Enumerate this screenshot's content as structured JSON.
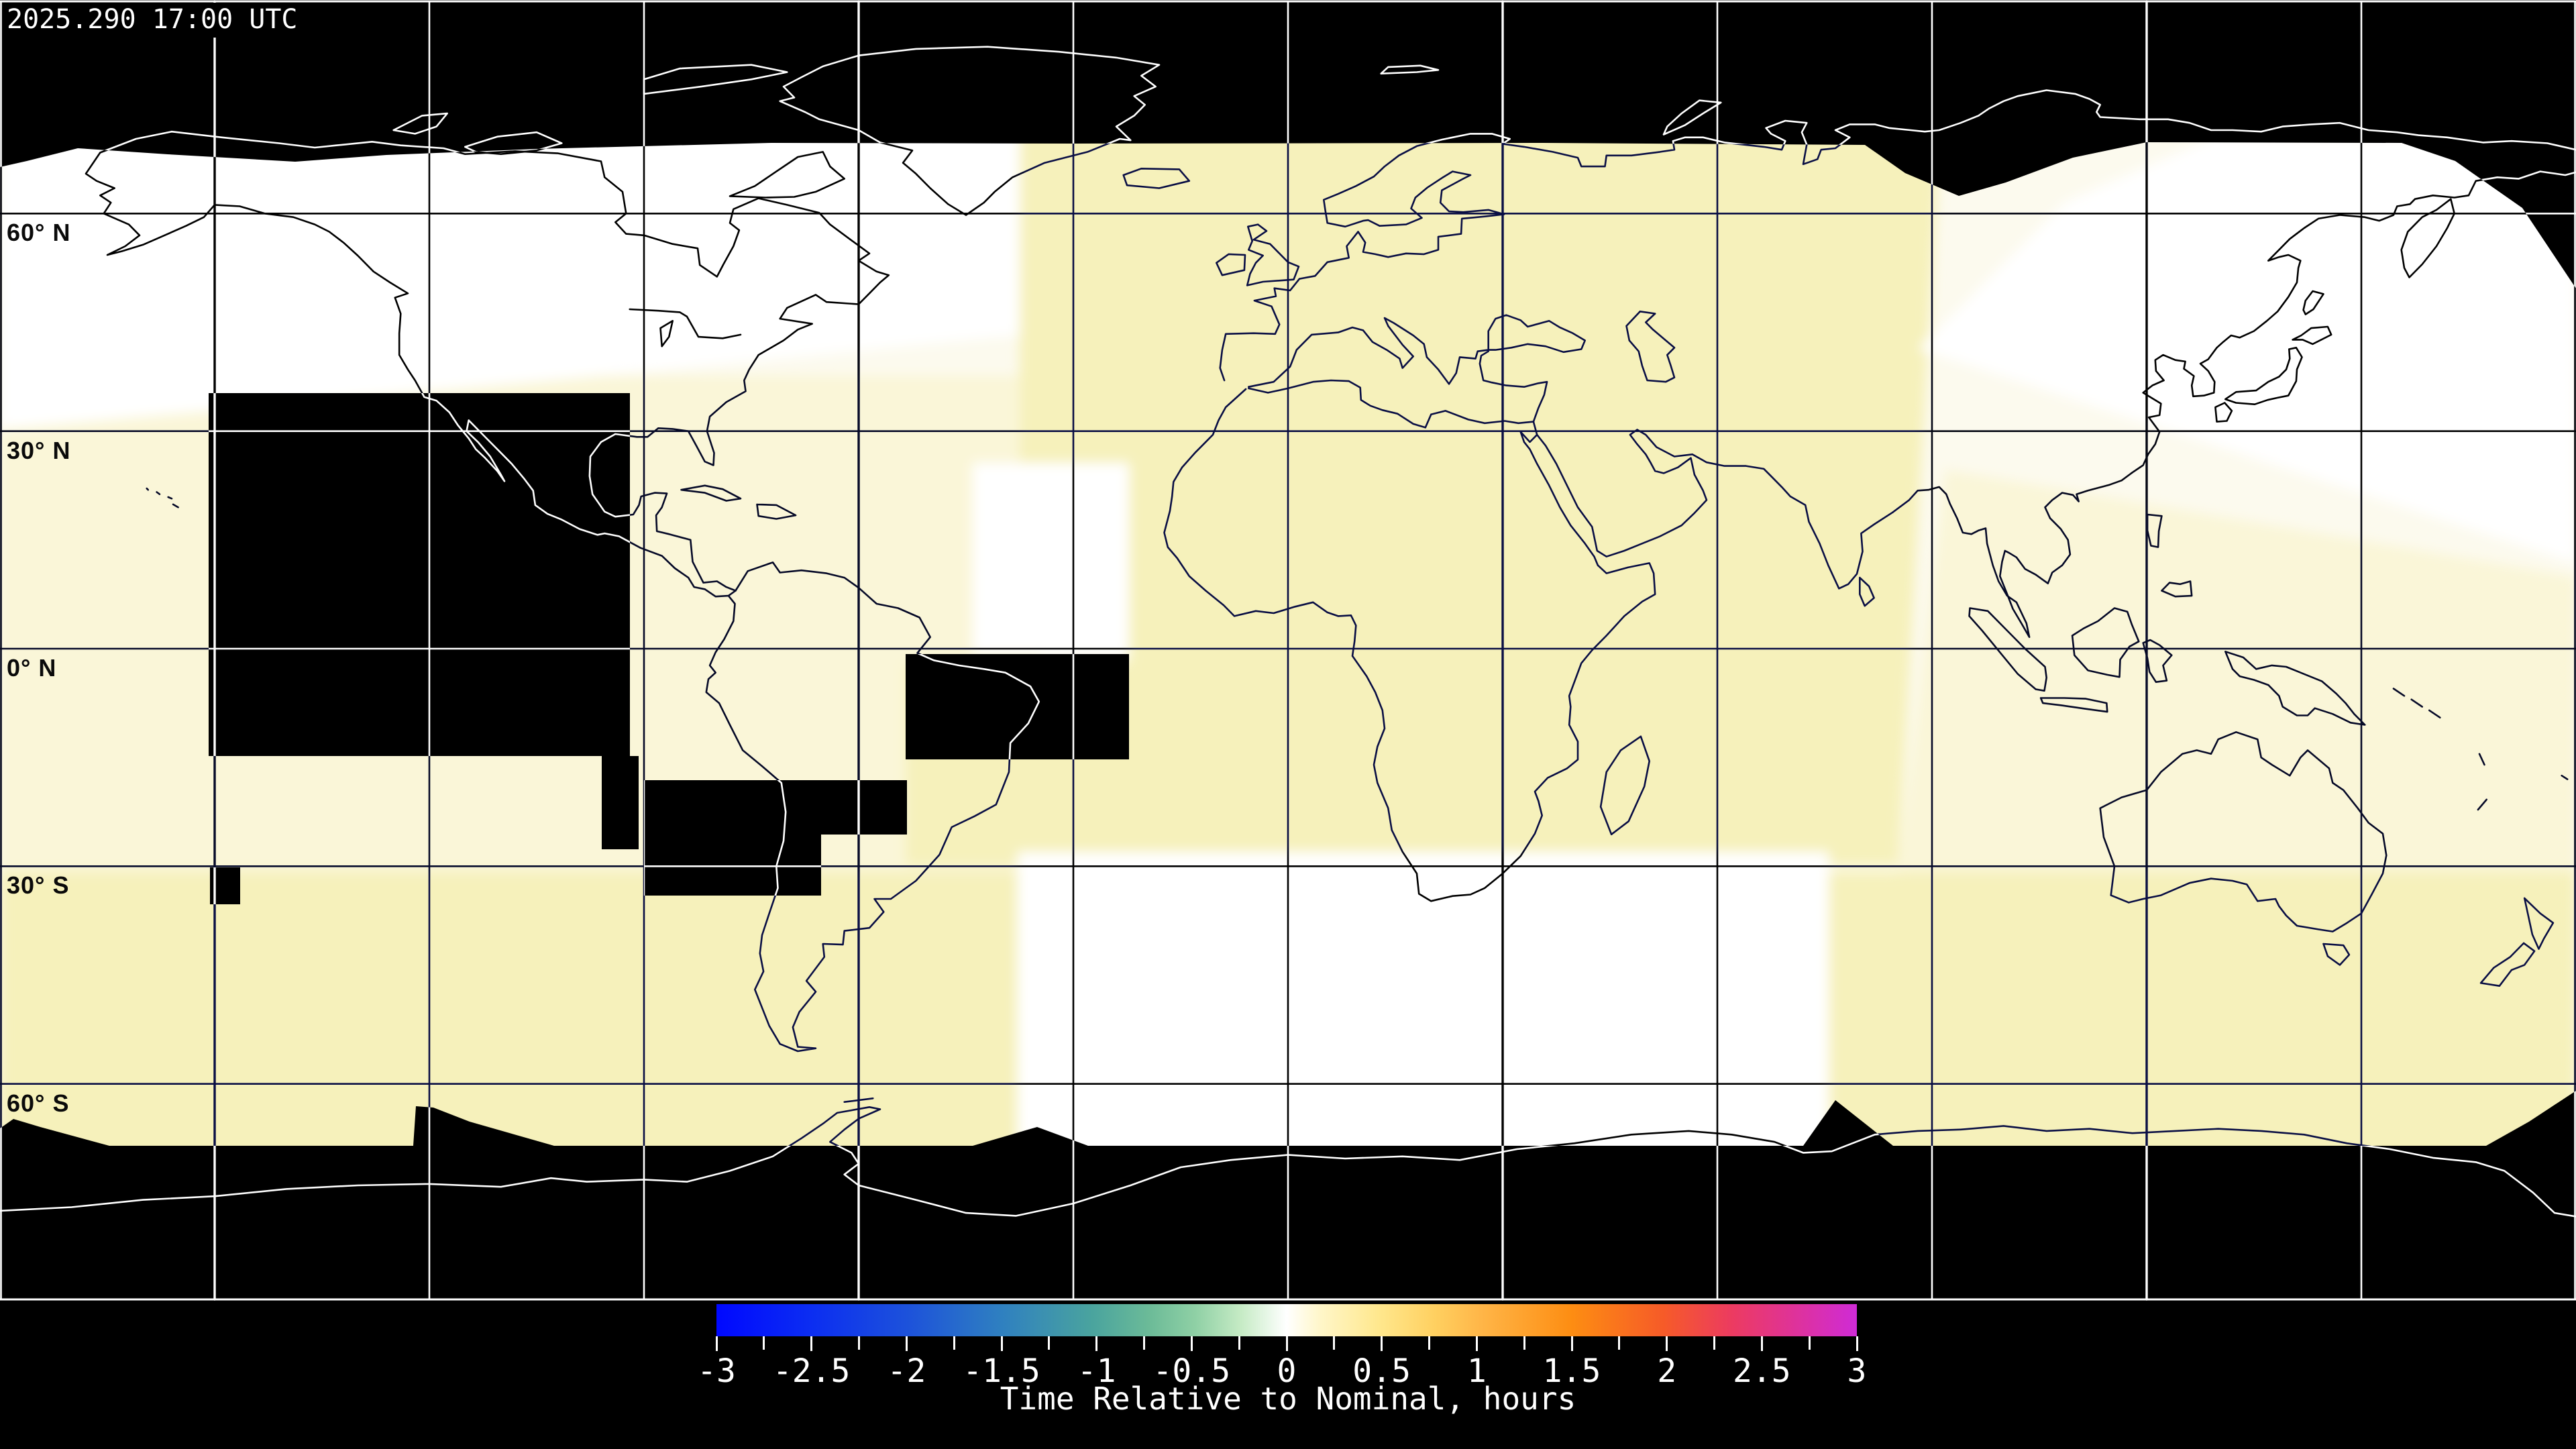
{
  "header": {
    "timestamp": "2025.290 17:00 UTC"
  },
  "map": {
    "latitude_labels": [
      {
        "label": "60° N",
        "lat": 60
      },
      {
        "label": "30° N",
        "lat": 30
      },
      {
        "label": "0° N",
        "lat": 0
      },
      {
        "label": "30° S",
        "lat": -30
      },
      {
        "label": "60° S",
        "lat": -60
      }
    ],
    "grid": {
      "lon_step_deg": 30,
      "lat_step_deg": 30
    },
    "field_colors": {
      "base": "#fcfaee",
      "cream": "#faf6d8",
      "yellow": "#f6f1bb",
      "white": "#ffffff",
      "no_data": "#000000",
      "line": "#ffffff"
    }
  },
  "colorbar": {
    "title": "Time Relative to Nominal, hours",
    "min_value": -3,
    "max_value": 3,
    "major_tick_labels": [
      "-3",
      "-2.5",
      "-2",
      "-1.5",
      "-1",
      "-0.5",
      "0",
      "0.5",
      "1",
      "1.5",
      "2",
      "2.5",
      "3"
    ],
    "minor_tick_step": 0.25,
    "gradient_stops": [
      [
        "0%",
        "#0008ff"
      ],
      [
        "8%",
        "#0b2cf2"
      ],
      [
        "17%",
        "#1d53da"
      ],
      [
        "25%",
        "#2f80c0"
      ],
      [
        "33%",
        "#4aa49e"
      ],
      [
        "38%",
        "#6cbb98"
      ],
      [
        "42%",
        "#8fd0a5"
      ],
      [
        "46%",
        "#c6ebc5"
      ],
      [
        "50%",
        "#ffffff"
      ],
      [
        "53%",
        "#fff6c8"
      ],
      [
        "58%",
        "#ffe88e"
      ],
      [
        "63%",
        "#ffd060"
      ],
      [
        "67%",
        "#ffb648"
      ],
      [
        "75%",
        "#fd8d12"
      ],
      [
        "83%",
        "#f65b28"
      ],
      [
        "89%",
        "#ec3b60"
      ],
      [
        "94%",
        "#e03394"
      ],
      [
        "100%",
        "#cf2bd6"
      ]
    ]
  }
}
